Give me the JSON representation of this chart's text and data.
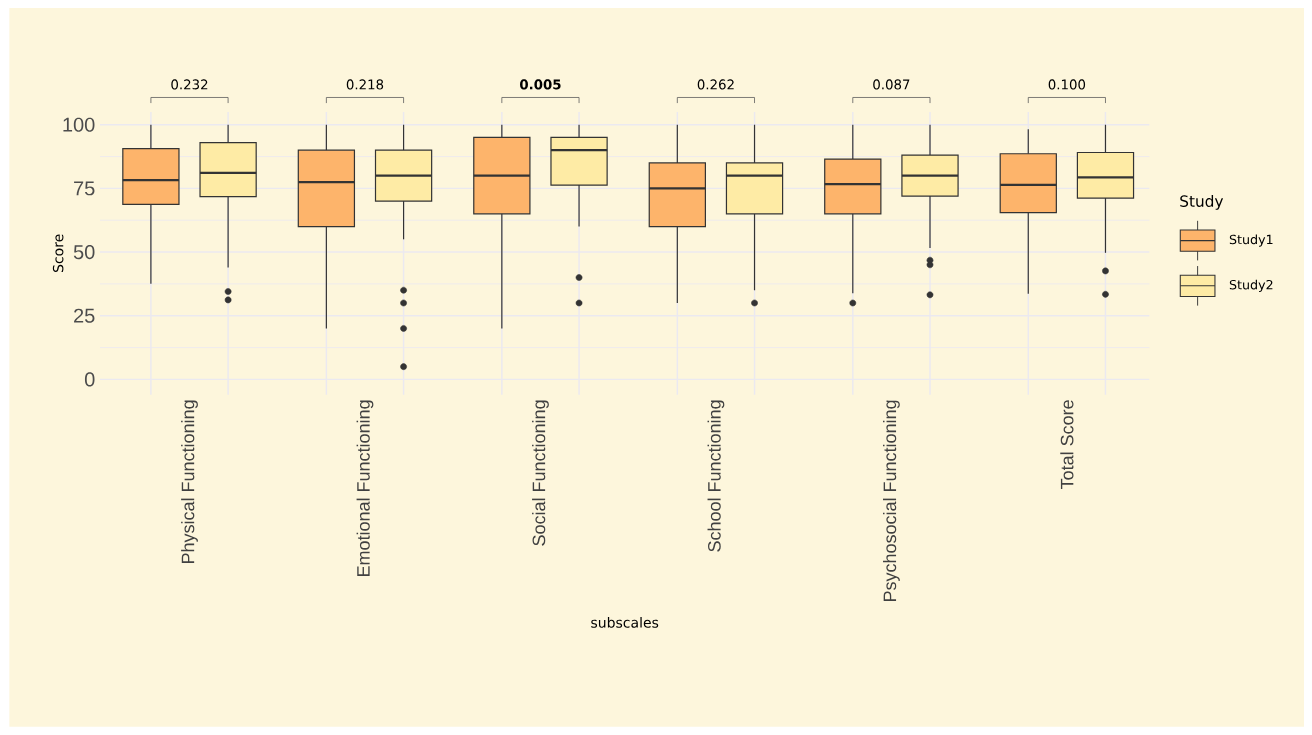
{
  "chart_data": {
    "type": "box",
    "xlabel": "subscales",
    "ylabel": "Score",
    "legend_title": "Study",
    "categories": [
      "Physical Functioning",
      "Emotional Functioning",
      "Social Functioning",
      "School Functioning",
      "Psychosocial Functioning",
      "Total Score"
    ],
    "series": [
      {
        "name": "Study1",
        "color": "#fdb46b",
        "boxes": [
          {
            "low": 37.6,
            "q1": 68.7,
            "median": 78.2,
            "q3": 90.6,
            "high": 100
          },
          {
            "low": 20,
            "q1": 60,
            "median": 77.5,
            "q3": 90,
            "high": 100
          },
          {
            "low": 20,
            "q1": 65,
            "median": 80,
            "q3": 95,
            "high": 100
          },
          {
            "low": 30,
            "q1": 60,
            "median": 75,
            "q3": 85,
            "high": 100
          },
          {
            "low": 33.8,
            "q1": 65,
            "median": 76.7,
            "q3": 86.5,
            "high": 100,
            "outliers": [
              30
            ]
          },
          {
            "low": 33.6,
            "q1": 65.5,
            "median": 76.4,
            "q3": 88.6,
            "high": 98.2
          }
        ]
      },
      {
        "name": "Study2",
        "color": "#feeba5",
        "boxes": [
          {
            "low": 43.9,
            "q1": 71.8,
            "median": 81.1,
            "q3": 93,
            "high": 100,
            "outliers": [
              34.5,
              31.2
            ]
          },
          {
            "low": 55,
            "q1": 70,
            "median": 80,
            "q3": 90,
            "high": 100,
            "outliers": [
              35,
              30,
              20,
              5
            ]
          },
          {
            "low": 60,
            "q1": 76.3,
            "median": 90,
            "q3": 95,
            "high": 100,
            "outliers": [
              40,
              30
            ]
          },
          {
            "low": 35,
            "q1": 65,
            "median": 80,
            "q3": 85,
            "high": 100,
            "outliers": [
              30
            ]
          },
          {
            "low": 51.6,
            "q1": 72,
            "median": 80,
            "q3": 88.1,
            "high": 100,
            "outliers": [
              46.8,
              45,
              33.2
            ]
          },
          {
            "low": 49.7,
            "q1": 71.2,
            "median": 79.3,
            "q3": 89.1,
            "high": 100,
            "outliers": [
              42.6,
              33.4
            ]
          }
        ]
      }
    ],
    "annotations": [
      "0.232",
      "0.218",
      "**0.005**",
      "0.262",
      "0.087",
      "0.100"
    ],
    "ylim": [
      -6,
      105
    ],
    "yticks": [
      0,
      25,
      50,
      75,
      100
    ],
    "grid": true,
    "legend": "right"
  }
}
